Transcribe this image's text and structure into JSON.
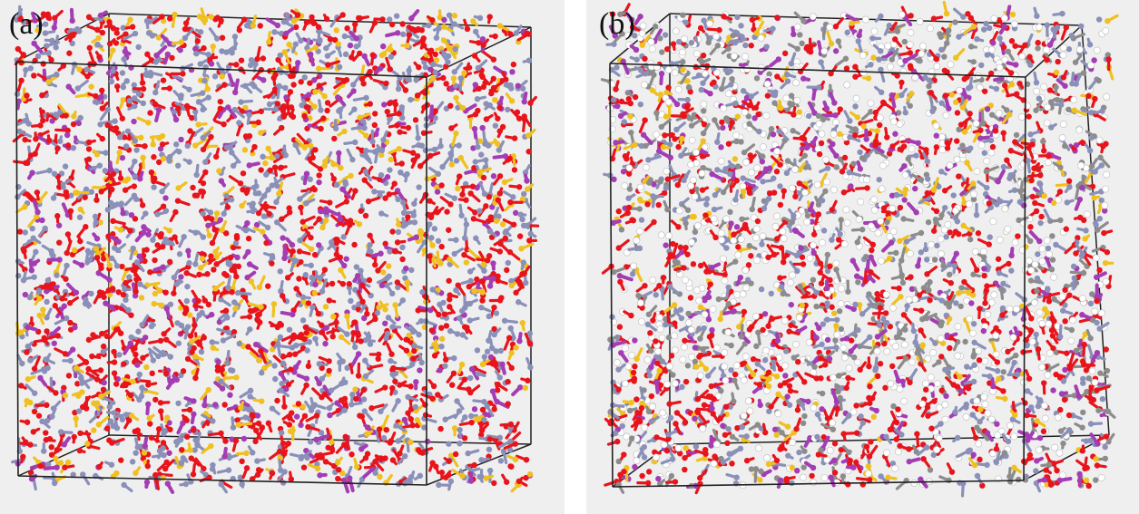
{
  "panels": [
    {
      "label": "(a)",
      "colors": {
        "oxygen": "#e8141c",
        "nitrogen": "#8a90b8",
        "sulfur": "#f0c020",
        "polymer": "#a43cb4"
      },
      "weights": {
        "oxygen": 0.42,
        "nitrogen": 0.33,
        "sulfur": 0.14,
        "polymer": 0.11
      }
    },
    {
      "label": "(b)",
      "colors": {
        "oxygen": "#e8141c",
        "nitrogen": "#8a90b8",
        "sulfur": "#f0c020",
        "polymer": "#a43cb4",
        "hydrogen": "#ffffff",
        "carbon": "#8c8c8c"
      },
      "weights": {
        "oxygen": 0.27,
        "nitrogen": 0.18,
        "sulfur": 0.07,
        "polymer": 0.1,
        "hydrogen": 0.23,
        "carbon": 0.15
      }
    }
  ],
  "box_color": "#222222"
}
